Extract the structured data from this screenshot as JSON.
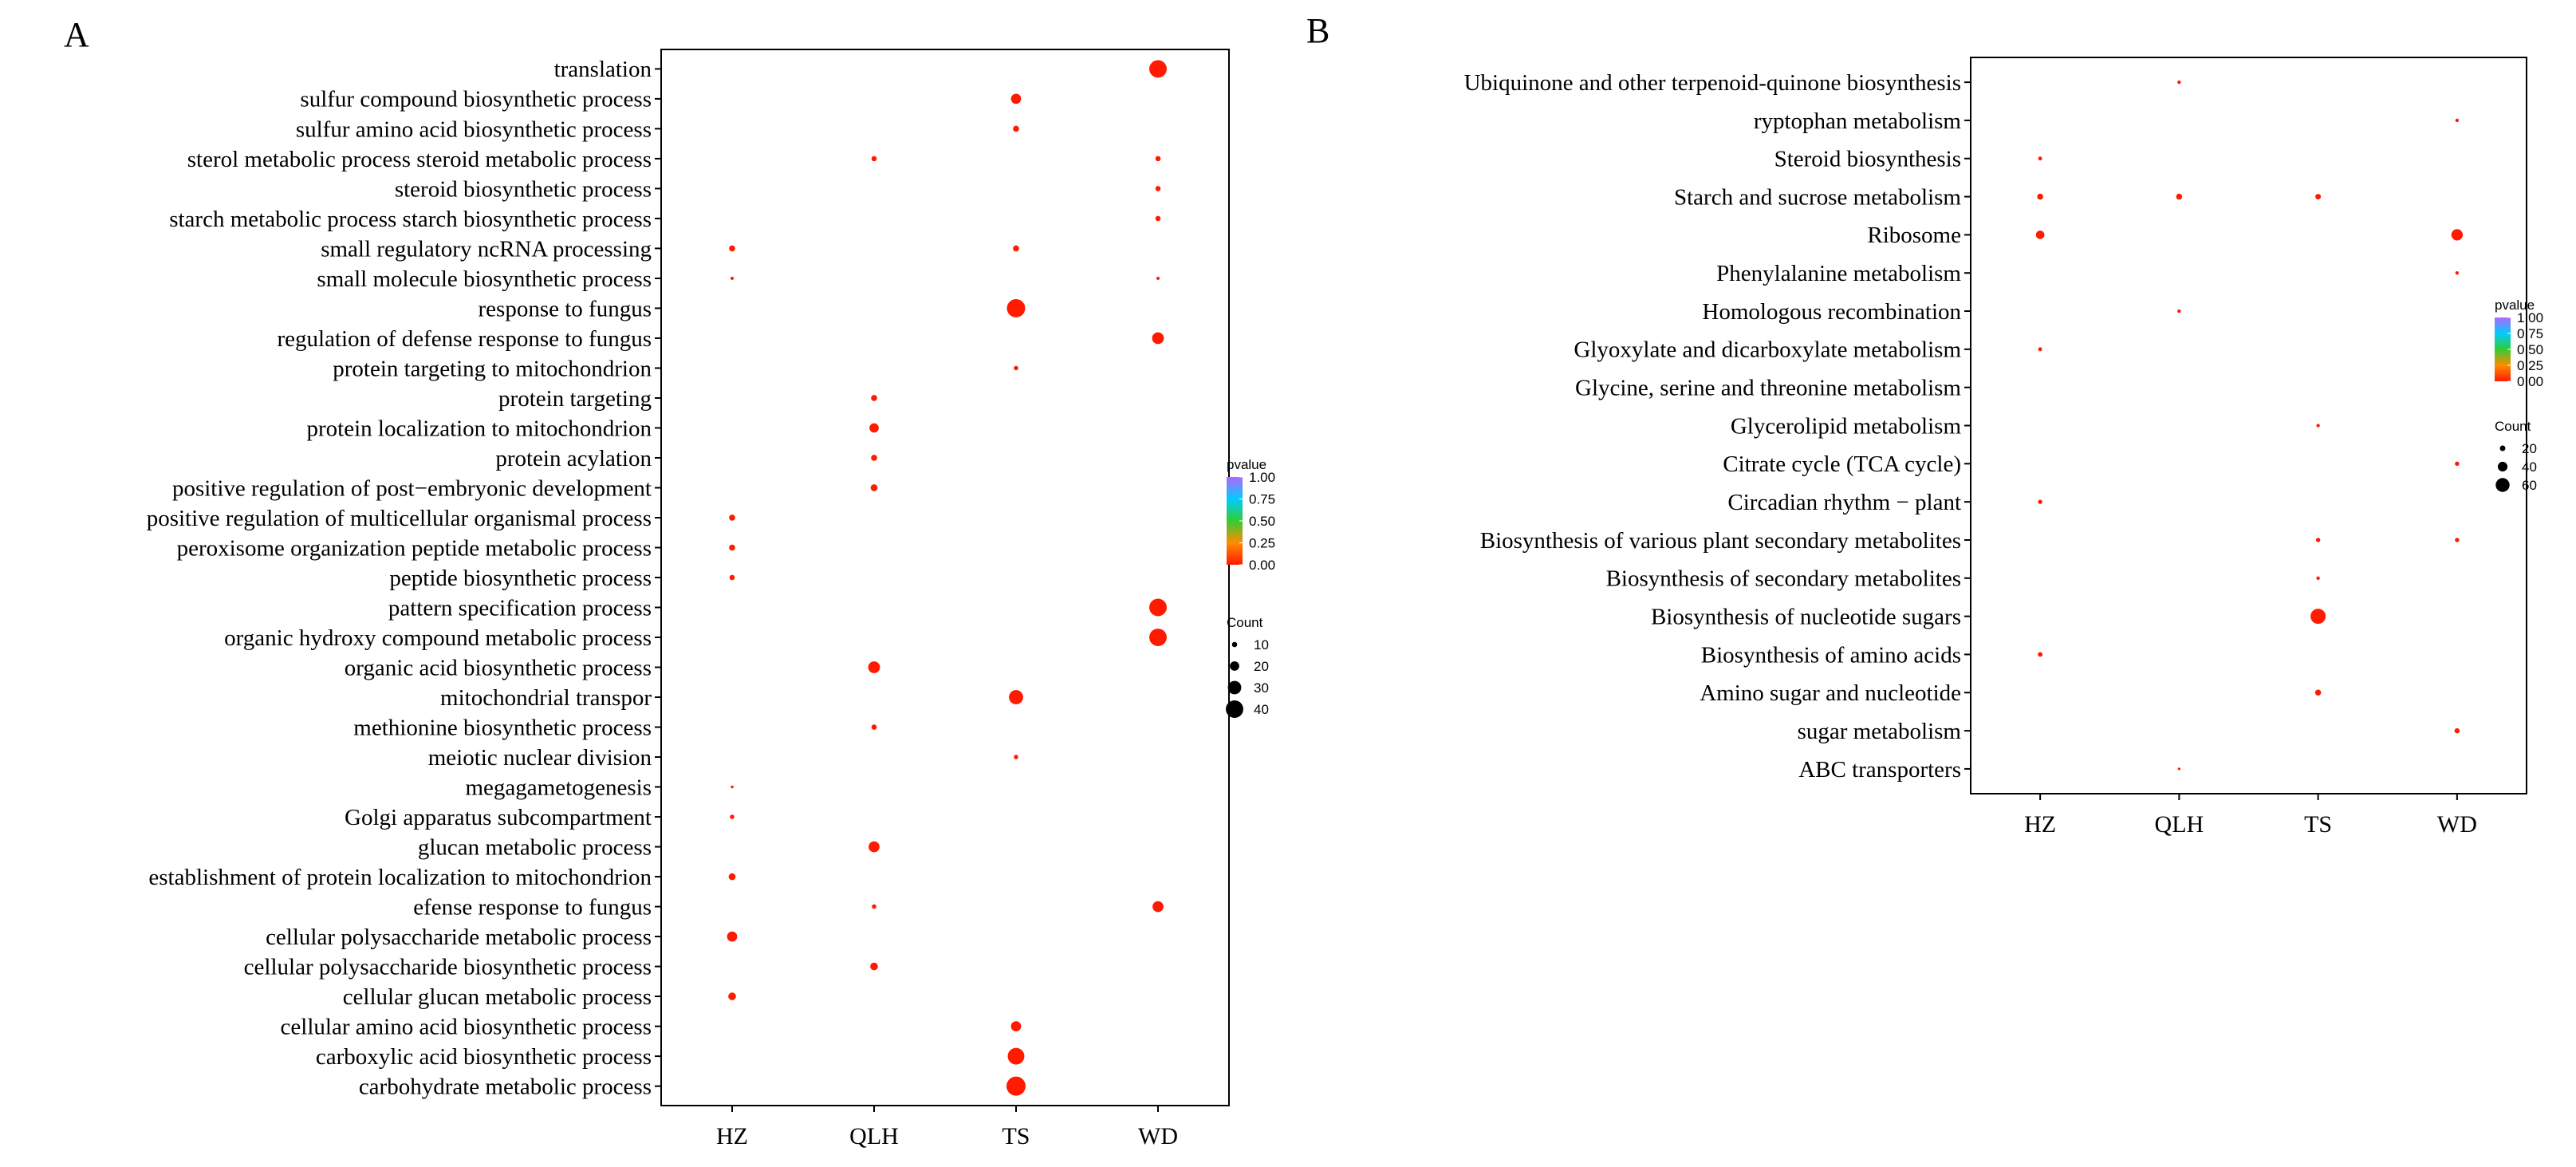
{
  "colors": {
    "low_p": "#ff1a00",
    "mid_low": "#ff8c00",
    "mid": "#33cc33",
    "mid_high": "#00ccff",
    "high_p": "#b266ff",
    "axis": "#000000"
  },
  "chart_data": [
    {
      "panel_label": "A",
      "type": "scatter",
      "subtype": "dot-plot",
      "xlabel": "",
      "ylabel": "",
      "categories": [
        "HZ",
        "QLH",
        "TS",
        "WD"
      ],
      "terms": [
        "translation",
        "sulfur compound biosynthetic process",
        "sulfur amino acid biosynthetic process",
        "sterol metabolic process steroid metabolic process",
        "steroid biosynthetic process",
        "starch metabolic process starch biosynthetic process",
        "small regulatory ncRNA processing",
        "small molecule biosynthetic process",
        "response to fungus",
        "regulation of defense response to fungus",
        "protein targeting to mitochondrion",
        "protein targeting",
        "protein localization to mitochondrion",
        "protein acylation",
        "positive regulation of post−embryonic development",
        "positive regulation of multicellular organismal process",
        "peroxisome organization peptide metabolic process",
        "peptide biosynthetic process",
        "pattern specification process",
        "organic hydroxy compound metabolic process",
        "organic acid biosynthetic process",
        "mitochondrial transpor",
        "methionine biosynthetic process",
        "meiotic nuclear division",
        "megagametogenesis",
        "Golgi apparatus subcompartment",
        "glucan metabolic process",
        "establishment of protein localization to mitochondrion",
        "efense response to fungus",
        "cellular polysaccharide metabolic process",
        "cellular polysaccharide biosynthetic process",
        "cellular glucan metabolic process",
        "cellular amino acid biosynthetic process",
        "carboxylic acid biosynthetic process",
        "carbohydrate metabolic process"
      ],
      "points": [
        {
          "term": "translation",
          "group": "WD",
          "count": 40,
          "pvalue": 0.0
        },
        {
          "term": "sulfur compound biosynthetic process",
          "group": "TS",
          "count": 22,
          "pvalue": 0.0
        },
        {
          "term": "sulfur amino acid biosynthetic process",
          "group": "TS",
          "count": 12,
          "pvalue": 0.0
        },
        {
          "term": "sterol metabolic process steroid metabolic process",
          "group": "QLH",
          "count": 10,
          "pvalue": 0.0
        },
        {
          "term": "sterol metabolic process steroid metabolic process",
          "group": "WD",
          "count": 10,
          "pvalue": 0.0
        },
        {
          "term": "steroid biosynthetic process",
          "group": "WD",
          "count": 10,
          "pvalue": 0.0
        },
        {
          "term": "starch metabolic process starch biosynthetic process",
          "group": "WD",
          "count": 10,
          "pvalue": 0.0
        },
        {
          "term": "small regulatory ncRNA processing",
          "group": "HZ",
          "count": 12,
          "pvalue": 0.0
        },
        {
          "term": "small regulatory ncRNA processing",
          "group": "TS",
          "count": 12,
          "pvalue": 0.0
        },
        {
          "term": "small molecule biosynthetic process",
          "group": "HZ",
          "count": 5,
          "pvalue": 0.0
        },
        {
          "term": "small molecule biosynthetic process",
          "group": "WD",
          "count": 5,
          "pvalue": 0.0
        },
        {
          "term": "response to fungus",
          "group": "TS",
          "count": 42,
          "pvalue": 0.0
        },
        {
          "term": "regulation of defense response to fungus",
          "group": "WD",
          "count": 26,
          "pvalue": 0.0
        },
        {
          "term": "protein targeting to mitochondrion",
          "group": "TS",
          "count": 8,
          "pvalue": 0.0
        },
        {
          "term": "protein targeting",
          "group": "QLH",
          "count": 12,
          "pvalue": 0.0
        },
        {
          "term": "protein localization to mitochondrion",
          "group": "QLH",
          "count": 20,
          "pvalue": 0.0
        },
        {
          "term": "protein acylation",
          "group": "QLH",
          "count": 12,
          "pvalue": 0.0
        },
        {
          "term": "positive regulation of post−embryonic development",
          "group": "QLH",
          "count": 14,
          "pvalue": 0.0
        },
        {
          "term": "positive regulation of multicellular organismal process",
          "group": "HZ",
          "count": 12,
          "pvalue": 0.0
        },
        {
          "term": "peroxisome organization peptide metabolic process",
          "group": "HZ",
          "count": 12,
          "pvalue": 0.0
        },
        {
          "term": "peptide biosynthetic process",
          "group": "HZ",
          "count": 10,
          "pvalue": 0.0
        },
        {
          "term": "pattern specification process",
          "group": "WD",
          "count": 40,
          "pvalue": 0.0
        },
        {
          "term": "organic hydroxy compound metabolic process",
          "group": "WD",
          "count": 40,
          "pvalue": 0.0
        },
        {
          "term": "organic hydroxy compound metabolic process",
          "group": "WD",
          "count": 16,
          "pvalue": 0.0
        },
        {
          "term": "organic acid biosynthetic process",
          "group": "QLH",
          "count": 26,
          "pvalue": 0.0
        },
        {
          "term": "mitochondrial transpor",
          "group": "TS",
          "count": 32,
          "pvalue": 0.0
        },
        {
          "term": "methionine biosynthetic process",
          "group": "QLH",
          "count": 10,
          "pvalue": 0.0
        },
        {
          "term": "meiotic nuclear division",
          "group": "TS",
          "count": 8,
          "pvalue": 0.0
        },
        {
          "term": "megagametogenesis",
          "group": "HZ",
          "count": 4,
          "pvalue": 0.0
        },
        {
          "term": "Golgi apparatus subcompartment",
          "group": "HZ",
          "count": 8,
          "pvalue": 0.0
        },
        {
          "term": "glucan metabolic process",
          "group": "QLH",
          "count": 24,
          "pvalue": 0.0
        },
        {
          "term": "establishment of protein localization to mitochondrion",
          "group": "HZ",
          "count": 14,
          "pvalue": 0.0
        },
        {
          "term": "efense response to fungus",
          "group": "QLH",
          "count": 8,
          "pvalue": 0.0
        },
        {
          "term": "efense response to fungus",
          "group": "WD",
          "count": 24,
          "pvalue": 0.0
        },
        {
          "term": "cellular polysaccharide metabolic process",
          "group": "HZ",
          "count": 22,
          "pvalue": 0.0
        },
        {
          "term": "cellular polysaccharide biosynthetic process",
          "group": "QLH",
          "count": 16,
          "pvalue": 0.0
        },
        {
          "term": "cellular glucan metabolic process",
          "group": "HZ",
          "count": 16,
          "pvalue": 0.0
        },
        {
          "term": "cellular amino acid biosynthetic process",
          "group": "TS",
          "count": 22,
          "pvalue": 0.0
        },
        {
          "term": "carboxylic acid biosynthetic process",
          "group": "TS",
          "count": 38,
          "pvalue": 0.0
        },
        {
          "term": "carbohydrate metabolic process",
          "group": "TS",
          "count": 44,
          "pvalue": 0.0
        }
      ],
      "legend": {
        "color_title": "pvalue",
        "color_ticks": [
          "1.00",
          "0.75",
          "0.50",
          "0.25",
          "0.00"
        ],
        "size_title": "Count",
        "size_labels": [
          "10",
          "20",
          "30",
          "40"
        ],
        "size_values": [
          10,
          20,
          30,
          40
        ]
      }
    },
    {
      "panel_label": "B",
      "type": "scatter",
      "subtype": "dot-plot",
      "xlabel": "",
      "ylabel": "",
      "categories": [
        "HZ",
        "QLH",
        "TS",
        "WD"
      ],
      "terms": [
        "Ubiquinone and other terpenoid-quinone biosynthesis",
        "ryptophan metabolism",
        "Steroid biosynthesis",
        "Starch and sucrose metabolism",
        "Ribosome",
        "Phenylalanine metabolism",
        "Homologous recombination",
        "Glyoxylate and dicarboxylate metabolism",
        "Glycine, serine and threonine metabolism",
        "Glycerolipid metabolism",
        "Citrate cycle (TCA cycle)",
        "Circadian rhythm − plant",
        "Biosynthesis of various plant secondary metabolites",
        "Biosynthesis of secondary metabolites",
        "Biosynthesis of nucleotide sugars",
        "Biosynthesis of amino acids",
        "Amino sugar and nucleotide",
        "sugar metabolism",
        "ABC transporters"
      ],
      "points": [
        {
          "term": "Ubiquinone and other terpenoid-quinone biosynthesis",
          "group": "QLH",
          "count": 10,
          "pvalue": 0.0
        },
        {
          "term": "ryptophan metabolism",
          "group": "WD",
          "count": 10,
          "pvalue": 0.0
        },
        {
          "term": "Steroid biosynthesis",
          "group": "HZ",
          "count": 12,
          "pvalue": 0.0
        },
        {
          "term": "Starch and sucrose metabolism",
          "group": "HZ",
          "count": 22,
          "pvalue": 0.0
        },
        {
          "term": "Starch and sucrose metabolism",
          "group": "QLH",
          "count": 22,
          "pvalue": 0.0
        },
        {
          "term": "Starch and sucrose metabolism",
          "group": "TS",
          "count": 20,
          "pvalue": 0.0
        },
        {
          "term": "Ribosome",
          "group": "HZ",
          "count": 34,
          "pvalue": 0.0
        },
        {
          "term": "Ribosome",
          "group": "WD",
          "count": 48,
          "pvalue": 0.0
        },
        {
          "term": "Phenylalanine metabolism",
          "group": "WD",
          "count": 10,
          "pvalue": 0.0
        },
        {
          "term": "Homologous recombination",
          "group": "QLH",
          "count": 10,
          "pvalue": 0.0
        },
        {
          "term": "Glyoxylate and dicarboxylate metabolism",
          "group": "HZ",
          "count": 12,
          "pvalue": 0.0
        },
        {
          "term": "Glycerolipid metabolism",
          "group": "TS",
          "count": 10,
          "pvalue": 0.0
        },
        {
          "term": "Citrate cycle (TCA cycle)",
          "group": "WD",
          "count": 14,
          "pvalue": 0.0
        },
        {
          "term": "Circadian rhythm − plant",
          "group": "HZ",
          "count": 14,
          "pvalue": 0.0
        },
        {
          "term": "Biosynthesis of various plant secondary metabolites",
          "group": "TS",
          "count": 14,
          "pvalue": 0.0
        },
        {
          "term": "Biosynthesis of various plant secondary metabolites",
          "group": "WD",
          "count": 14,
          "pvalue": 0.0
        },
        {
          "term": "Biosynthesis of secondary metabolites",
          "group": "TS",
          "count": 10,
          "pvalue": 0.0
        },
        {
          "term": "Biosynthesis of nucleotide sugars",
          "group": "TS",
          "count": 66,
          "pvalue": 0.0
        },
        {
          "term": "Biosynthesis of amino acids",
          "group": "HZ",
          "count": 16,
          "pvalue": 0.0
        },
        {
          "term": "Amino sugar and nucleotide",
          "group": "TS",
          "count": 22,
          "pvalue": 0.0
        },
        {
          "term": "sugar metabolism",
          "group": "WD",
          "count": 18,
          "pvalue": 0.0
        },
        {
          "term": "ABC transporters",
          "group": "QLH",
          "count": 6,
          "pvalue": 0.0
        }
      ],
      "legend": {
        "color_title": "pvalue",
        "color_ticks": [
          "1.00",
          "0.75",
          "0.50",
          "0.25",
          "0.00"
        ],
        "size_title": "Count",
        "size_labels": [
          "20",
          "40",
          "60"
        ],
        "size_values": [
          20,
          40,
          60
        ]
      }
    }
  ]
}
